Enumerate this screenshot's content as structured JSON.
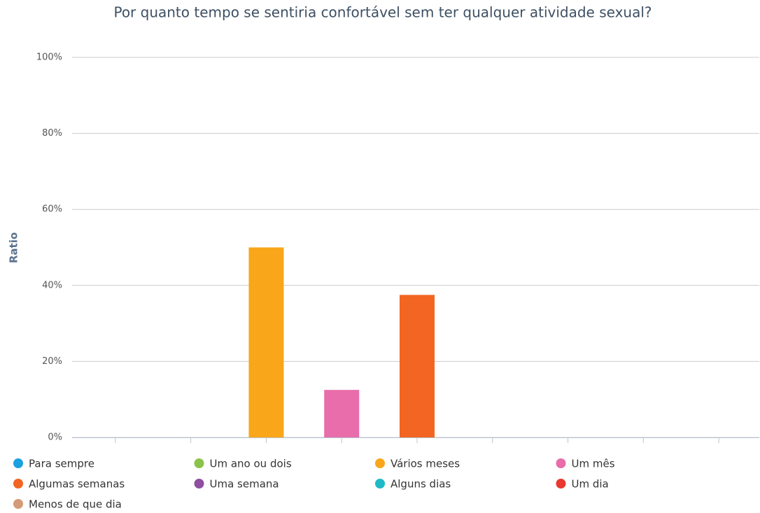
{
  "chart_data": {
    "type": "bar",
    "title": "Por quanto tempo se sentiria confortável sem ter qualquer atividade sexual?",
    "y_label": "Ratio",
    "categories": [
      "Para sempre",
      "Um ano ou dois",
      "Vários meses",
      "Um mês",
      "Algumas semanas",
      "Uma semana",
      "Alguns dias",
      "Um dia",
      "Menos de que dia"
    ],
    "colors": [
      "#1ba1e2",
      "#8bc34a",
      "#faa61a",
      "#e86daa",
      "#f26522",
      "#8e4fa0",
      "#1fb9c8",
      "#e8382f",
      "#d39b7a"
    ],
    "values": [
      0,
      0,
      50,
      12.5,
      37.5,
      0,
      0,
      0,
      0
    ],
    "ylim": [
      0,
      100
    ],
    "yticks": [
      {
        "value": 0,
        "label": "0%"
      },
      {
        "value": 20,
        "label": "20%"
      },
      {
        "value": 40,
        "label": "40%"
      },
      {
        "value": 60,
        "label": "60%"
      },
      {
        "value": 80,
        "label": "80%"
      },
      {
        "value": 100,
        "label": "100%"
      }
    ],
    "grid": true
  }
}
